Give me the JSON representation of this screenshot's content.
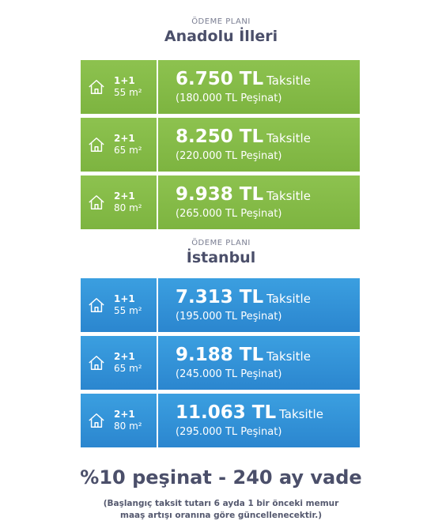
{
  "sections": [
    {
      "kicker": "ÖDEME PLANI",
      "region": "Anadolu İlleri",
      "plans": [
        {
          "rooms": "1+1",
          "area": "55 m²",
          "price": "6.750 TL",
          "taksit": "Taksitle",
          "down": "(180.000 TL Peşinat)"
        },
        {
          "rooms": "2+1",
          "area": "65 m²",
          "price": "8.250 TL",
          "taksit": "Taksitle",
          "down": "(220.000 TL Peşinat)"
        },
        {
          "rooms": "2+1",
          "area": "80 m²",
          "price": "9.938 TL",
          "taksit": "Taksitle",
          "down": "(265.000 TL Peşinat)"
        }
      ]
    },
    {
      "kicker": "ÖDEME PLANI",
      "region": "İstanbul",
      "plans": [
        {
          "rooms": "1+1",
          "area": "55 m²",
          "price": "7.313 TL",
          "taksit": "Taksitle",
          "down": "(195.000 TL Peşinat)"
        },
        {
          "rooms": "2+1",
          "area": "65 m²",
          "price": "9.188 TL",
          "taksit": "Taksitle",
          "down": "(245.000 TL Peşinat)"
        },
        {
          "rooms": "2+1",
          "area": "80 m²",
          "price": "11.063 TL",
          "taksit": "Taksitle",
          "down": "(295.000 TL Peşinat)"
        }
      ]
    }
  ],
  "colors": {
    "anadolu": "#84bb47",
    "istanbul": "#3392d8"
  },
  "icon": "house-icon",
  "footer": {
    "headline": "%10 peşinat - 240 ay vade",
    "note_line1": "(Başlangıç taksit tutarı 6 ayda 1 bir önceki memur",
    "note_line2": "maaş artışı oranına göre güncellenecektir.)"
  }
}
